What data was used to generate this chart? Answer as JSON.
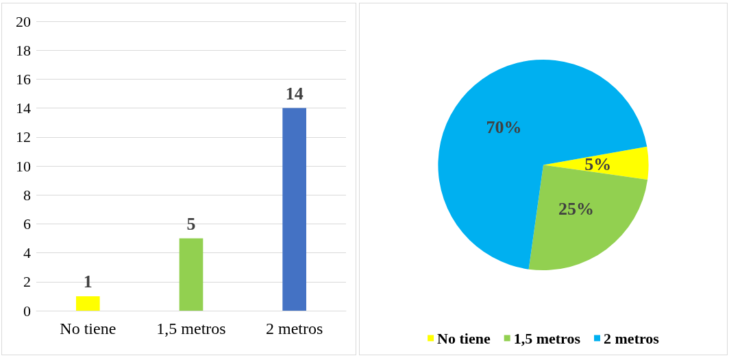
{
  "chart_data": [
    {
      "type": "bar",
      "categories": [
        "No tiene",
        "1,5 metros",
        "2 metros"
      ],
      "values": [
        1,
        5,
        14
      ],
      "colors": [
        "#ffff00",
        "#92d050",
        "#4472c4"
      ],
      "ylim": [
        0,
        20
      ],
      "yticks": [
        0,
        2,
        4,
        6,
        8,
        10,
        12,
        14,
        16,
        18,
        20
      ],
      "grid": "y",
      "data_labels": true,
      "legend": false
    },
    {
      "type": "pie",
      "categories": [
        "No tiene",
        "1,5 metros",
        "2 metros"
      ],
      "values": [
        5,
        25,
        70
      ],
      "colors": [
        "#ffff00",
        "#92d050",
        "#00b0f0"
      ],
      "value_labels": [
        "5%",
        "25%",
        "70%"
      ],
      "legend": "bottom"
    }
  ]
}
